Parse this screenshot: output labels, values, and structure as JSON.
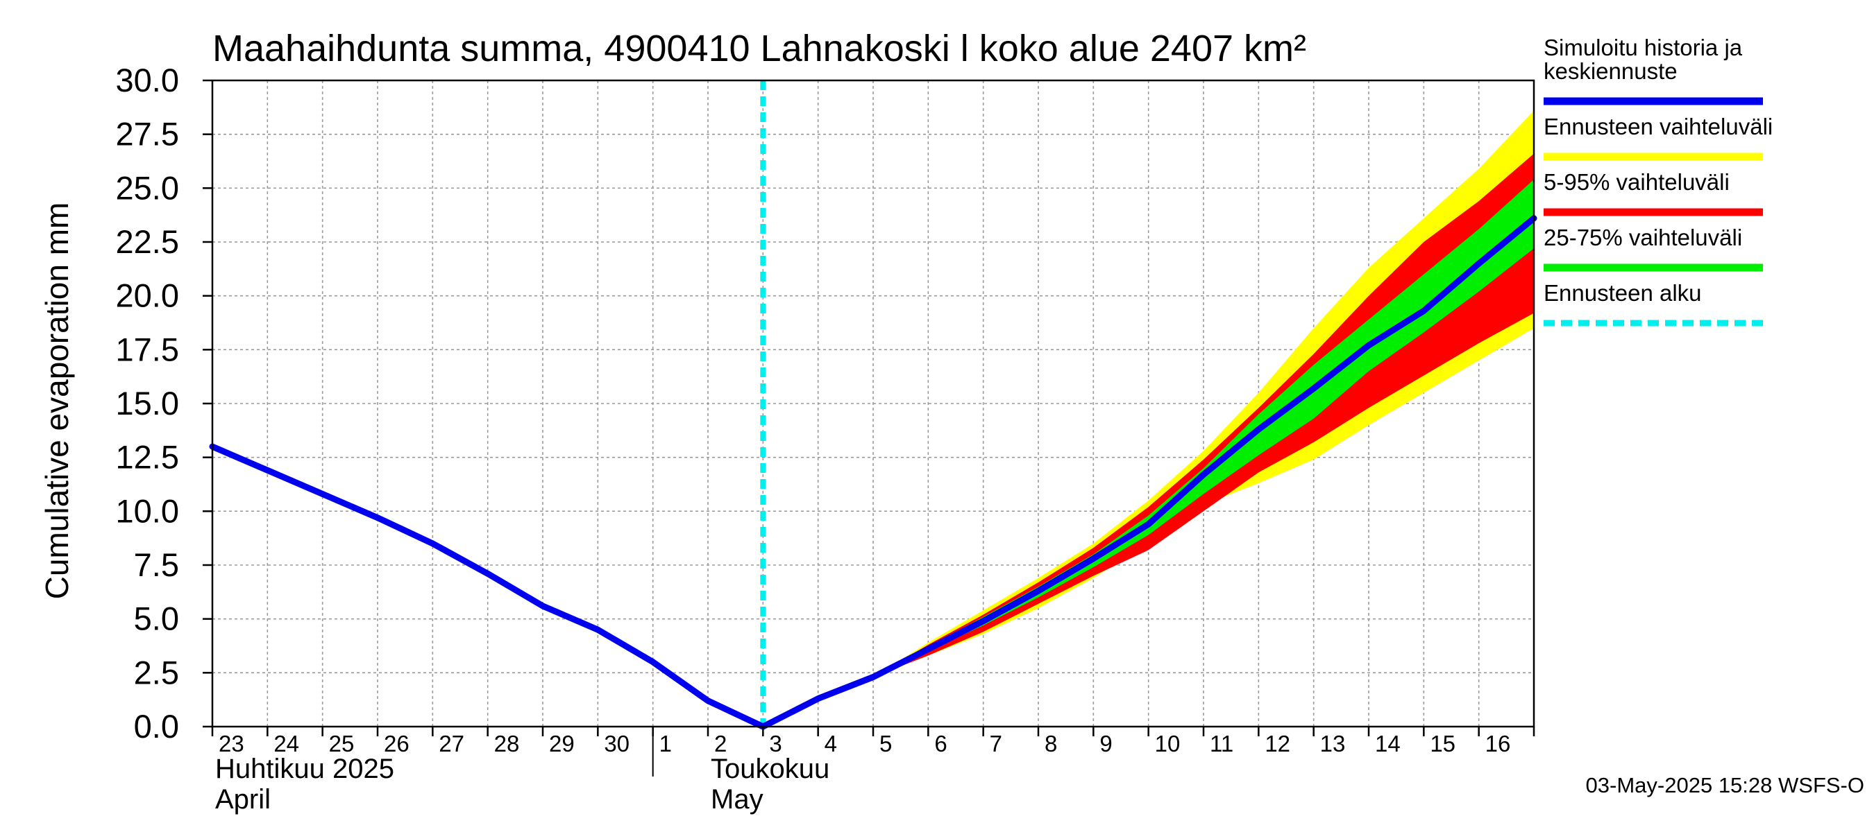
{
  "chart_data": {
    "type": "area",
    "title": "Maahaihdunta summa, 4900410 Lahnakoski l koko alue 2407 km²",
    "ylabel": "Cumulative evaporation   mm",
    "xlabel": "",
    "ylim": [
      0,
      30
    ],
    "yticks": [
      "0.0",
      "2.5",
      "5.0",
      "7.5",
      "10.0",
      "12.5",
      "15.0",
      "17.5",
      "20.0",
      "22.5",
      "25.0",
      "27.5",
      "30.0"
    ],
    "xlim": [
      "2025-04-23",
      "2025-05-17"
    ],
    "xtick_labels": [
      {
        "date": "2025-04-23",
        "label": "23"
      },
      {
        "date": "2025-04-24",
        "label": "24"
      },
      {
        "date": "2025-04-25",
        "label": "25"
      },
      {
        "date": "2025-04-26",
        "label": "26"
      },
      {
        "date": "2025-04-27",
        "label": "27"
      },
      {
        "date": "2025-04-28",
        "label": "28"
      },
      {
        "date": "2025-04-29",
        "label": "29"
      },
      {
        "date": "2025-04-30",
        "label": "30"
      },
      {
        "date": "2025-05-01",
        "label": "1"
      },
      {
        "date": "2025-05-02",
        "label": "2"
      },
      {
        "date": "2025-05-03",
        "label": "3"
      },
      {
        "date": "2025-05-04",
        "label": "4"
      },
      {
        "date": "2025-05-05",
        "label": "5"
      },
      {
        "date": "2025-05-06",
        "label": "6"
      },
      {
        "date": "2025-05-07",
        "label": "7"
      },
      {
        "date": "2025-05-08",
        "label": "8"
      },
      {
        "date": "2025-05-09",
        "label": "9"
      },
      {
        "date": "2025-05-10",
        "label": "10"
      },
      {
        "date": "2025-05-11",
        "label": "11"
      },
      {
        "date": "2025-05-12",
        "label": "12"
      },
      {
        "date": "2025-05-13",
        "label": "13"
      },
      {
        "date": "2025-05-14",
        "label": "14"
      },
      {
        "date": "2025-05-15",
        "label": "15"
      },
      {
        "date": "2025-05-16",
        "label": "16"
      }
    ],
    "month_labels": [
      {
        "date": "2025-04-23",
        "line1": "Huhtikuu  2025",
        "line2": "April"
      },
      {
        "date": "2025-05-02",
        "line1": "Toukokuu",
        "line2": "May"
      }
    ],
    "month_separator_date": "2025-05-01",
    "forecast_start_date": "2025-05-03",
    "grid": true,
    "legend_position": "right",
    "series": [
      {
        "name": "Simuloitu historia ja keskiennuste",
        "role": "line",
        "color": "#0000ee",
        "points": [
          [
            "2025-04-23",
            13.0
          ],
          [
            "2025-04-24",
            11.9
          ],
          [
            "2025-04-25",
            10.8
          ],
          [
            "2025-04-26",
            9.7
          ],
          [
            "2025-04-27",
            8.5
          ],
          [
            "2025-04-28",
            7.1
          ],
          [
            "2025-04-29",
            5.6
          ],
          [
            "2025-04-30",
            4.5
          ],
          [
            "2025-05-01",
            3.0
          ],
          [
            "2025-05-02",
            1.2
          ],
          [
            "2025-05-03",
            0.0
          ],
          [
            "2025-05-04",
            1.3
          ],
          [
            "2025-05-05",
            2.3
          ],
          [
            "2025-05-06",
            3.6
          ],
          [
            "2025-05-07",
            4.9
          ],
          [
            "2025-05-08",
            6.3
          ],
          [
            "2025-05-09",
            7.8
          ],
          [
            "2025-05-10",
            9.4
          ],
          [
            "2025-05-11",
            11.7
          ],
          [
            "2025-05-12",
            13.8
          ],
          [
            "2025-05-13",
            15.7
          ],
          [
            "2025-05-14",
            17.7
          ],
          [
            "2025-05-15",
            19.3
          ],
          [
            "2025-05-16",
            21.5
          ],
          [
            "2025-05-17",
            23.6
          ]
        ]
      },
      {
        "name": "Ennusteen vaihteluväli",
        "role": "band",
        "color": "#ffff00",
        "x": [
          "2025-05-05",
          "2025-05-06",
          "2025-05-07",
          "2025-05-08",
          "2025-05-09",
          "2025-05-10",
          "2025-05-11",
          "2025-05-12",
          "2025-05-13",
          "2025-05-14",
          "2025-05-15",
          "2025-05-16",
          "2025-05-17"
        ],
        "lower": [
          2.3,
          3.3,
          4.3,
          5.5,
          6.9,
          8.5,
          10.3,
          11.3,
          12.4,
          14.0,
          15.5,
          17.0,
          18.5
        ],
        "upper": [
          2.3,
          3.9,
          5.4,
          6.9,
          8.5,
          10.5,
          12.8,
          15.5,
          18.5,
          21.3,
          23.6,
          25.9,
          28.6
        ]
      },
      {
        "name": "5-95% vaihteluväli",
        "role": "band",
        "color": "#ff0000",
        "x": [
          "2025-05-05",
          "2025-05-06",
          "2025-05-07",
          "2025-05-08",
          "2025-05-09",
          "2025-05-10",
          "2025-05-11",
          "2025-05-12",
          "2025-05-13",
          "2025-05-14",
          "2025-05-15",
          "2025-05-16",
          "2025-05-17"
        ],
        "lower": [
          2.3,
          3.3,
          4.4,
          5.7,
          7.0,
          8.2,
          10.0,
          11.8,
          13.2,
          14.8,
          16.3,
          17.8,
          19.2
        ],
        "upper": [
          2.3,
          3.8,
          5.2,
          6.7,
          8.3,
          10.2,
          12.4,
          14.8,
          17.3,
          20.0,
          22.5,
          24.4,
          26.6
        ]
      },
      {
        "name": "25-75% vaihteluväli",
        "role": "band",
        "color": "#00ee00",
        "x": [
          "2025-05-05",
          "2025-05-06",
          "2025-05-07",
          "2025-05-08",
          "2025-05-09",
          "2025-05-10",
          "2025-05-11",
          "2025-05-12",
          "2025-05-13",
          "2025-05-14",
          "2025-05-15",
          "2025-05-16",
          "2025-05-17"
        ],
        "lower": [
          2.3,
          3.5,
          4.7,
          6.0,
          7.4,
          8.9,
          10.8,
          12.6,
          14.3,
          16.5,
          18.3,
          20.2,
          22.2
        ],
        "upper": [
          2.3,
          3.7,
          5.1,
          6.5,
          8.0,
          9.8,
          12.0,
          14.5,
          16.8,
          18.9,
          21.0,
          23.1,
          25.4
        ]
      },
      {
        "name": "Ennusteen alku",
        "role": "vline",
        "color": "#00eeee",
        "date": "2025-05-03"
      }
    ]
  },
  "footer": "03-May-2025 15:28 WSFS-O"
}
